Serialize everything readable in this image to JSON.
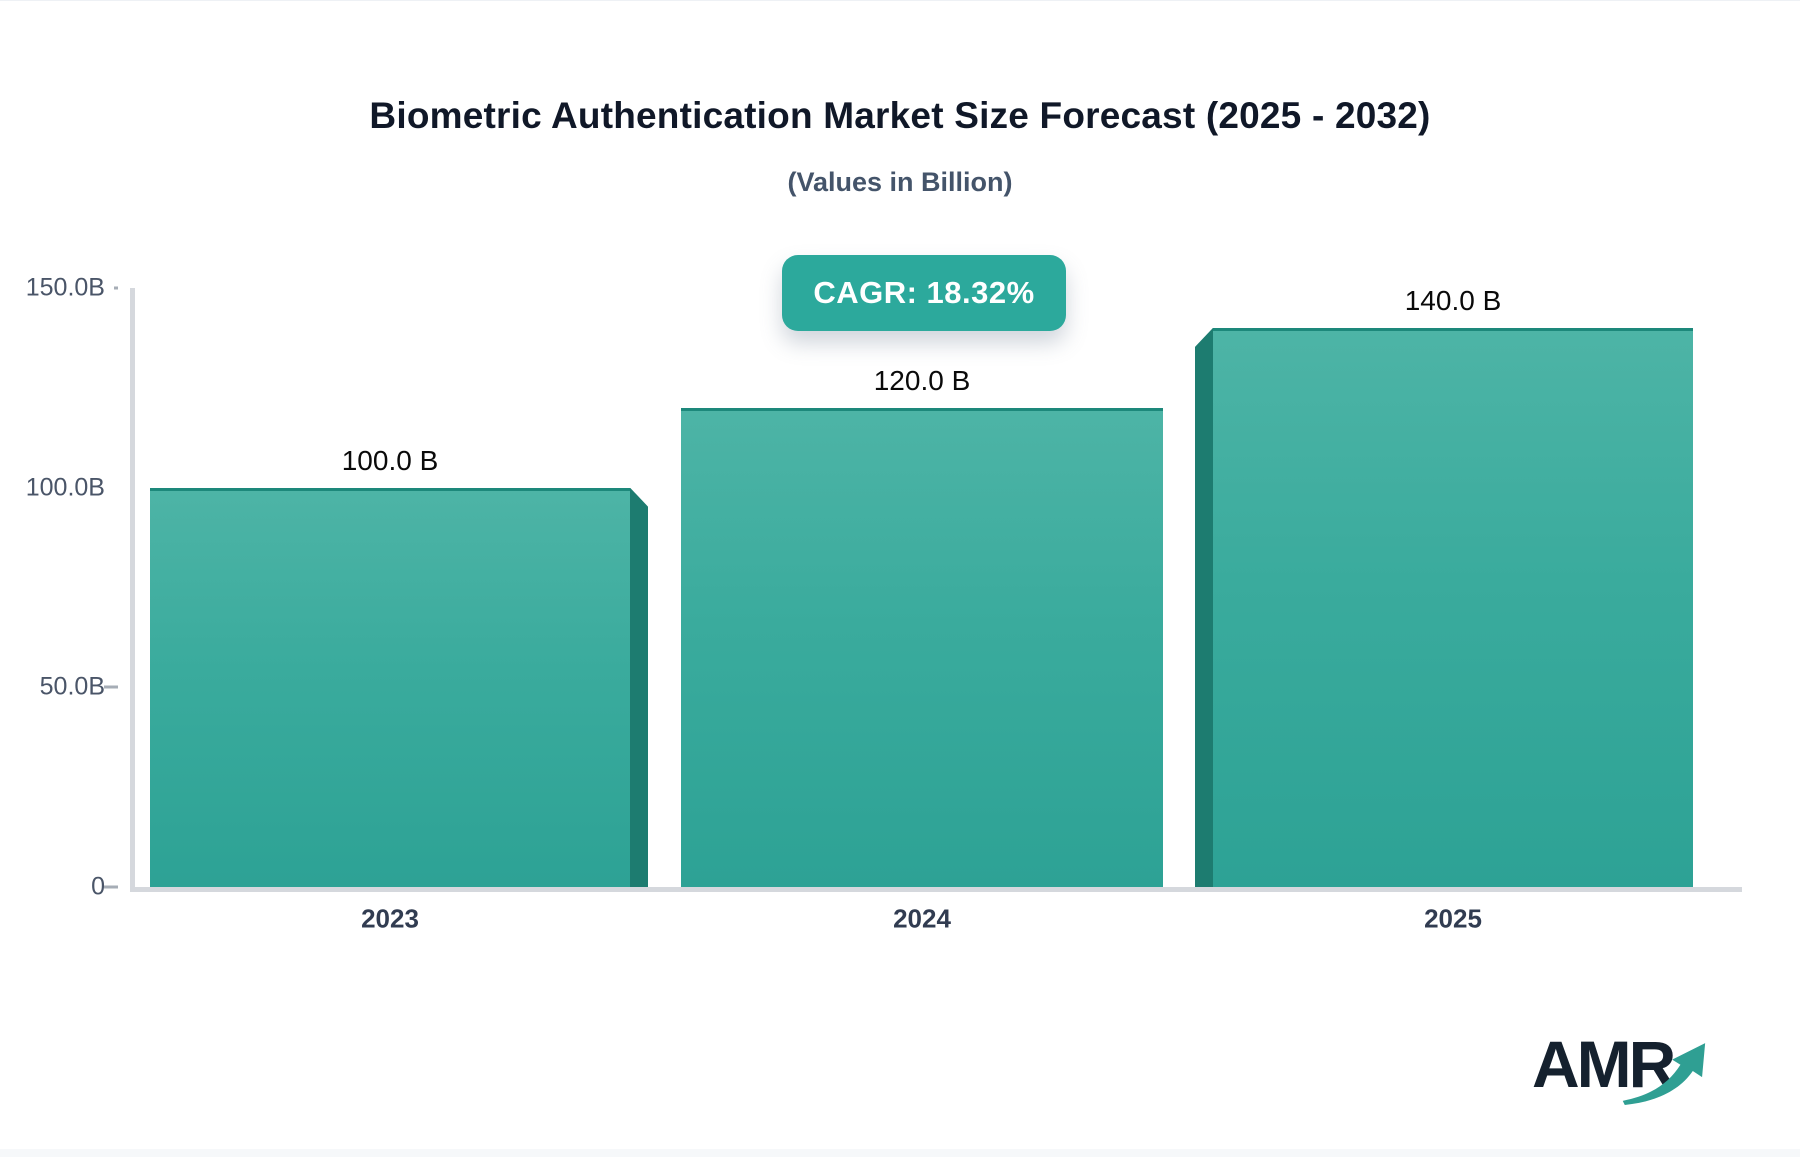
{
  "header": {
    "title": "Biometric Authentication Market Size Forecast (2025 - 2032)",
    "subtitle": "(Values in Billion)",
    "cagr_badge": "CAGR: 18.32%"
  },
  "chart_data": {
    "type": "bar",
    "title": "Biometric Authentication Market Size Forecast (2025 - 2032)",
    "subtitle": "(Values in Billion)",
    "annotation": "CAGR: 18.32%",
    "categories": [
      "2023",
      "2024",
      "2025"
    ],
    "values": [
      100.0,
      120.0,
      140.0
    ],
    "value_labels": [
      "100.0 B",
      "120.0 B",
      "140.0 B"
    ],
    "ylim": [
      0,
      150
    ],
    "y_ticks": [
      {
        "value": 150,
        "label": "150.0B"
      },
      {
        "value": 100,
        "label": "100.0B"
      },
      {
        "value": 50,
        "label": "50.0B"
      },
      {
        "value": 0,
        "label": "0"
      }
    ],
    "grid": false,
    "legend": "none",
    "colors": {
      "bar_gradient_top": "#4db4a6",
      "bar_gradient_bottom": "#2da295",
      "bar_side_3d": "#1d7c70",
      "bar_top_edge": "#1d887b",
      "badge_background": "#2ca99c",
      "axis_line": "#d5d8dd",
      "axis_label_color": "#4a5568",
      "category_label_color": "#313c51",
      "value_label_color": "#0a0a0a"
    }
  },
  "branding": {
    "logo_text": "AMR",
    "logo_arrow_icon": "trend-up-arrow",
    "logo_color": "#15212e",
    "arrow_color": "#2f9f93"
  }
}
